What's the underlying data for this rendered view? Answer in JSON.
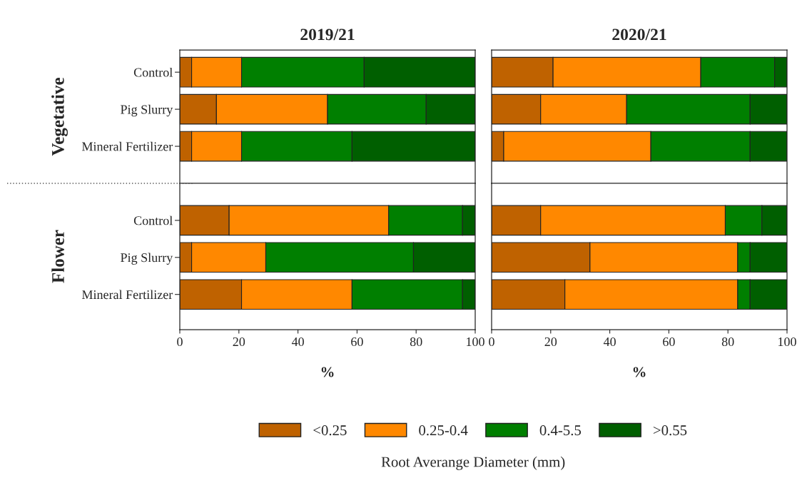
{
  "chart_data": [
    {
      "type": "bar",
      "orientation": "horizontal",
      "stacked": true,
      "title": "2019/21",
      "ylabel": "Vegetative",
      "categories": [
        "Control",
        "Pig Slurry",
        "Mineral Fertilizer"
      ],
      "xlim": [
        0,
        100
      ],
      "xticks": [
        0,
        20,
        40,
        60,
        80,
        100
      ],
      "tick_labels": "y",
      "legend": "bottom",
      "legend_title": "Root Averange Diameter (mm)",
      "series": [
        {
          "name": "<0.25",
          "color": "#bf6200",
          "values": [
            4.0,
            12.4,
            4.0
          ]
        },
        {
          "name": "0.25-0.4",
          "color": "#ff8800",
          "values": [
            16.9,
            37.6,
            16.9
          ]
        },
        {
          "name": "0.4-5.5",
          "color": "#007f00",
          "values": [
            41.5,
            33.4,
            37.4
          ]
        },
        {
          "name": ">0.55",
          "color": "#005f00",
          "values": [
            37.6,
            16.6,
            41.7
          ]
        }
      ]
    },
    {
      "type": "bar",
      "orientation": "horizontal",
      "stacked": true,
      "title": "2020/21",
      "categories": [
        null,
        null,
        null
      ],
      "xlim": [
        0,
        100
      ],
      "xticks": [
        0,
        20,
        40,
        60,
        80,
        100
      ],
      "tick_labels": false,
      "series": [
        {
          "color": "#bf6200",
          "values": [
            20.8,
            16.6,
            4.1
          ]
        },
        {
          "color": "#ff8800",
          "values": [
            50.0,
            29.1,
            49.8
          ]
        },
        {
          "color": "#007f00",
          "values": [
            25.0,
            41.8,
            33.6
          ]
        },
        {
          "color": "#005f00",
          "values": [
            4.2,
            12.5,
            12.5
          ]
        }
      ]
    },
    {
      "type": "bar",
      "orientation": "horizontal",
      "stacked": true,
      "ylabel": "Flower",
      "xlabel": "%",
      "categories": [
        "Control",
        "Pig Slurry",
        "Mineral Fertilizer"
      ],
      "xlim": [
        0,
        100
      ],
      "xticks": [
        0,
        20,
        40,
        60,
        80,
        100
      ],
      "series": [
        {
          "color": "#bf6200",
          "values": [
            16.7,
            4.0,
            20.9
          ]
        },
        {
          "color": "#ff8800",
          "values": [
            54.0,
            25.1,
            37.4
          ]
        },
        {
          "color": "#007f00",
          "values": [
            25.0,
            50.0,
            37.4
          ]
        },
        {
          "color": "#005f00",
          "values": [
            4.3,
            20.9,
            4.3
          ]
        }
      ]
    },
    {
      "type": "bar",
      "orientation": "horizontal",
      "stacked": true,
      "xlabel": "%",
      "categories": [
        null,
        null,
        null
      ],
      "xlim": [
        0,
        100
      ],
      "xticks": [
        0,
        20,
        40,
        60,
        80,
        100
      ],
      "tick_labels": "x",
      "series": [
        {
          "color": "#bf6200",
          "values": [
            16.6,
            33.3,
            24.8
          ]
        },
        {
          "color": "#ff8800",
          "values": [
            62.5,
            50.0,
            58.5
          ]
        },
        {
          "color": "#007f00",
          "values": [
            12.4,
            4.2,
            4.2
          ]
        },
        {
          "color": "#005f00",
          "values": [
            8.5,
            12.5,
            12.5
          ]
        }
      ]
    }
  ]
}
